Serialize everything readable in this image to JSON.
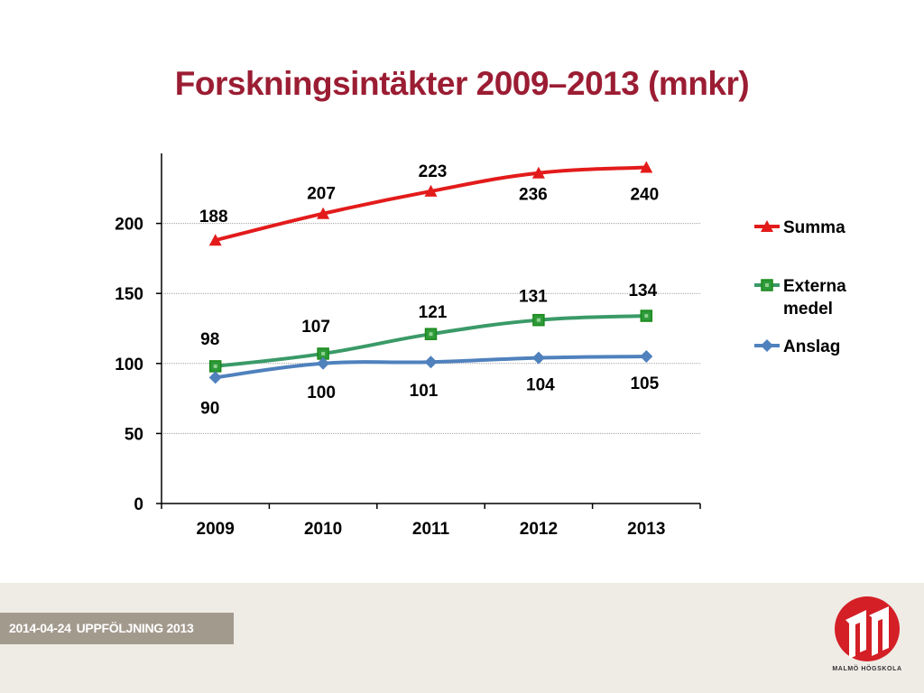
{
  "title": "Forskningsintäkter 2009–2013 (mnkr)",
  "footer": {
    "date": "2014-04-24",
    "label": "UPPFÖLJNING 2013",
    "logo_text": "MALMÖ HÖGSKOLA"
  },
  "colors": {
    "title": "#9b1d33",
    "summa": "#e31b1b",
    "externa": "#3a9a68",
    "externa_marker": "#1a8a1a",
    "anslag": "#4f81bd"
  },
  "chart_data": {
    "type": "line",
    "categories": [
      "2009",
      "2010",
      "2011",
      "2012",
      "2013"
    ],
    "ylim": [
      0,
      250
    ],
    "yticks": [
      0,
      50,
      100,
      150,
      200
    ],
    "grid": true,
    "legend": "right",
    "series": [
      {
        "name": "Summa",
        "values": [
          188,
          207,
          223,
          236,
          240
        ],
        "marker": "triangle"
      },
      {
        "name": "Externa medel",
        "legend_lines": [
          "Externa",
          "medel"
        ],
        "values": [
          98,
          107,
          121,
          131,
          134
        ],
        "marker": "square"
      },
      {
        "name": "Anslag",
        "values": [
          90,
          100,
          101,
          104,
          105
        ],
        "marker": "diamond"
      }
    ]
  }
}
